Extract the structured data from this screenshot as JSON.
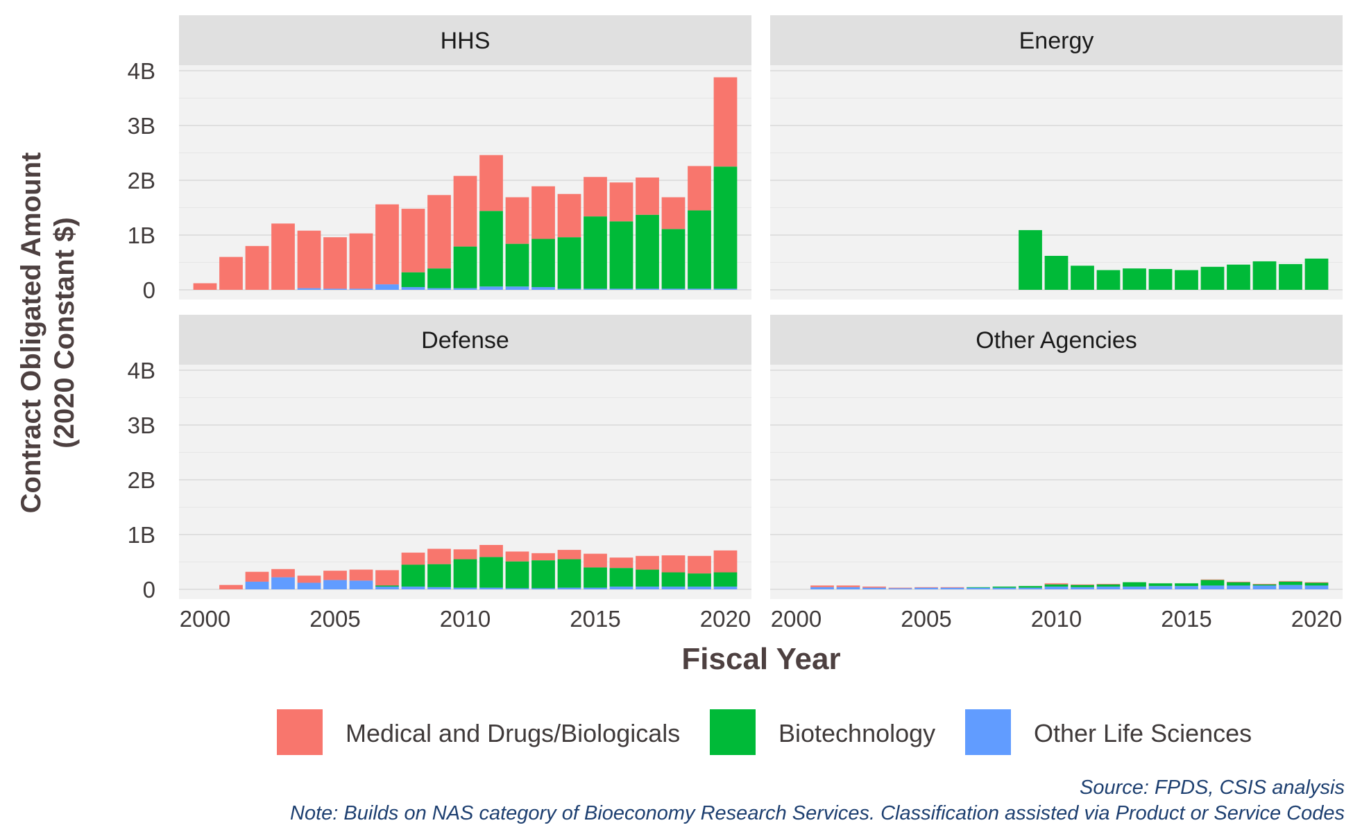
{
  "chart_data": {
    "type": "bar",
    "stacked": true,
    "facets": [
      "HHS",
      "Energy",
      "Defense",
      "Other Agencies"
    ],
    "x": [
      2000,
      2001,
      2002,
      2003,
      2004,
      2005,
      2006,
      2007,
      2008,
      2009,
      2010,
      2011,
      2012,
      2013,
      2014,
      2015,
      2016,
      2017,
      2018,
      2019,
      2020
    ],
    "xticks": [
      2000,
      2005,
      2010,
      2015,
      2020
    ],
    "xtick_labels": [
      "2000",
      "2005",
      "2010",
      "2015",
      "2020"
    ],
    "xlim": [
      1999,
      2021
    ],
    "ylim": [
      0,
      4.0
    ],
    "yticks": [
      0,
      1,
      2,
      3,
      4
    ],
    "ytick_labels": [
      "0",
      "1B",
      "2B",
      "3B",
      "4B"
    ],
    "xlabel": "Fiscal Year",
    "ylabel": [
      "Contract Obligated Amount",
      "(2020 Constant $)"
    ],
    "grid": true,
    "legend_position": "bottom",
    "series": [
      {
        "name": "Medical and Drugs/Biologicals",
        "color": "#F8766D"
      },
      {
        "name": "Biotechnology",
        "color": "#00BA38"
      },
      {
        "name": "Other Life Sciences",
        "color": "#619CFF"
      }
    ],
    "panels": [
      {
        "name": "HHS",
        "values": {
          "Other Life Sciences": [
            0,
            0,
            0,
            0,
            0.03,
            0.02,
            0.02,
            0.1,
            0.05,
            0.03,
            0.03,
            0.06,
            0.06,
            0.05,
            0.02,
            0.02,
            0.02,
            0.02,
            0.02,
            0.02,
            0.02
          ],
          "Biotechnology": [
            0,
            0,
            0,
            0,
            0,
            0,
            0,
            0,
            0.27,
            0.36,
            0.76,
            1.38,
            0.78,
            0.88,
            0.94,
            1.32,
            1.23,
            1.35,
            1.09,
            1.43,
            2.23
          ],
          "Medical and Drugs/Biologicals": [
            0.12,
            0.6,
            0.8,
            1.21,
            1.05,
            0.94,
            1.01,
            1.46,
            1.16,
            1.34,
            1.29,
            1.02,
            0.85,
            0.96,
            0.79,
            0.72,
            0.71,
            0.68,
            0.58,
            0.81,
            1.63
          ]
        }
      },
      {
        "name": "Energy",
        "values": {
          "Other Life Sciences": [
            0,
            0,
            0,
            0,
            0,
            0,
            0,
            0,
            0,
            0,
            0,
            0,
            0,
            0,
            0,
            0,
            0,
            0,
            0,
            0,
            0
          ],
          "Biotechnology": [
            0,
            0,
            0,
            0,
            0,
            0,
            0,
            0,
            0,
            1.09,
            0.62,
            0.44,
            0.36,
            0.39,
            0.38,
            0.36,
            0.42,
            0.46,
            0.52,
            0.47,
            0.57
          ],
          "Medical and Drugs/Biologicals": [
            0,
            0,
            0,
            0,
            0,
            0,
            0,
            0,
            0,
            0,
            0,
            0,
            0,
            0,
            0,
            0,
            0,
            0,
            0,
            0,
            0
          ]
        }
      },
      {
        "name": "Defense",
        "values": {
          "Other Life Sciences": [
            0,
            0,
            0.14,
            0.22,
            0.12,
            0.17,
            0.16,
            0.05,
            0.05,
            0.04,
            0.03,
            0.03,
            0.02,
            0.02,
            0.03,
            0.03,
            0.05,
            0.05,
            0.05,
            0.05,
            0.05
          ],
          "Biotechnology": [
            0,
            0,
            0,
            0,
            0,
            0,
            0,
            0.02,
            0.4,
            0.42,
            0.52,
            0.56,
            0.49,
            0.51,
            0.52,
            0.37,
            0.34,
            0.31,
            0.26,
            0.24,
            0.26
          ],
          "Medical and Drugs/Biologicals": [
            0,
            0.08,
            0.18,
            0.15,
            0.13,
            0.17,
            0.2,
            0.28,
            0.22,
            0.28,
            0.18,
            0.22,
            0.18,
            0.13,
            0.17,
            0.25,
            0.19,
            0.25,
            0.31,
            0.32,
            0.4
          ]
        }
      },
      {
        "name": "Other Agencies",
        "values": {
          "Other Life Sciences": [
            0,
            0.04,
            0.04,
            0.03,
            0.02,
            0.03,
            0.03,
            0.03,
            0.03,
            0.03,
            0.05,
            0.04,
            0.05,
            0.05,
            0.06,
            0.06,
            0.07,
            0.07,
            0.07,
            0.08,
            0.07
          ],
          "Biotechnology": [
            0,
            0,
            0,
            0,
            0,
            0,
            0,
            0.01,
            0.02,
            0.03,
            0.04,
            0.04,
            0.04,
            0.08,
            0.05,
            0.05,
            0.1,
            0.06,
            0.02,
            0.06,
            0.05
          ],
          "Medical and Drugs/Biologicals": [
            0,
            0.03,
            0.03,
            0.02,
            0.01,
            0.01,
            0.01,
            0,
            0,
            0,
            0.02,
            0.01,
            0.01,
            0,
            0,
            0,
            0.01,
            0.01,
            0.01,
            0.01,
            0.01
          ]
        }
      }
    ],
    "source": "Source: FPDS, CSIS analysis",
    "note": "Note: Builds on NAS category of Bioeconomy Research Services. Classification assisted via Product or Service Codes"
  }
}
